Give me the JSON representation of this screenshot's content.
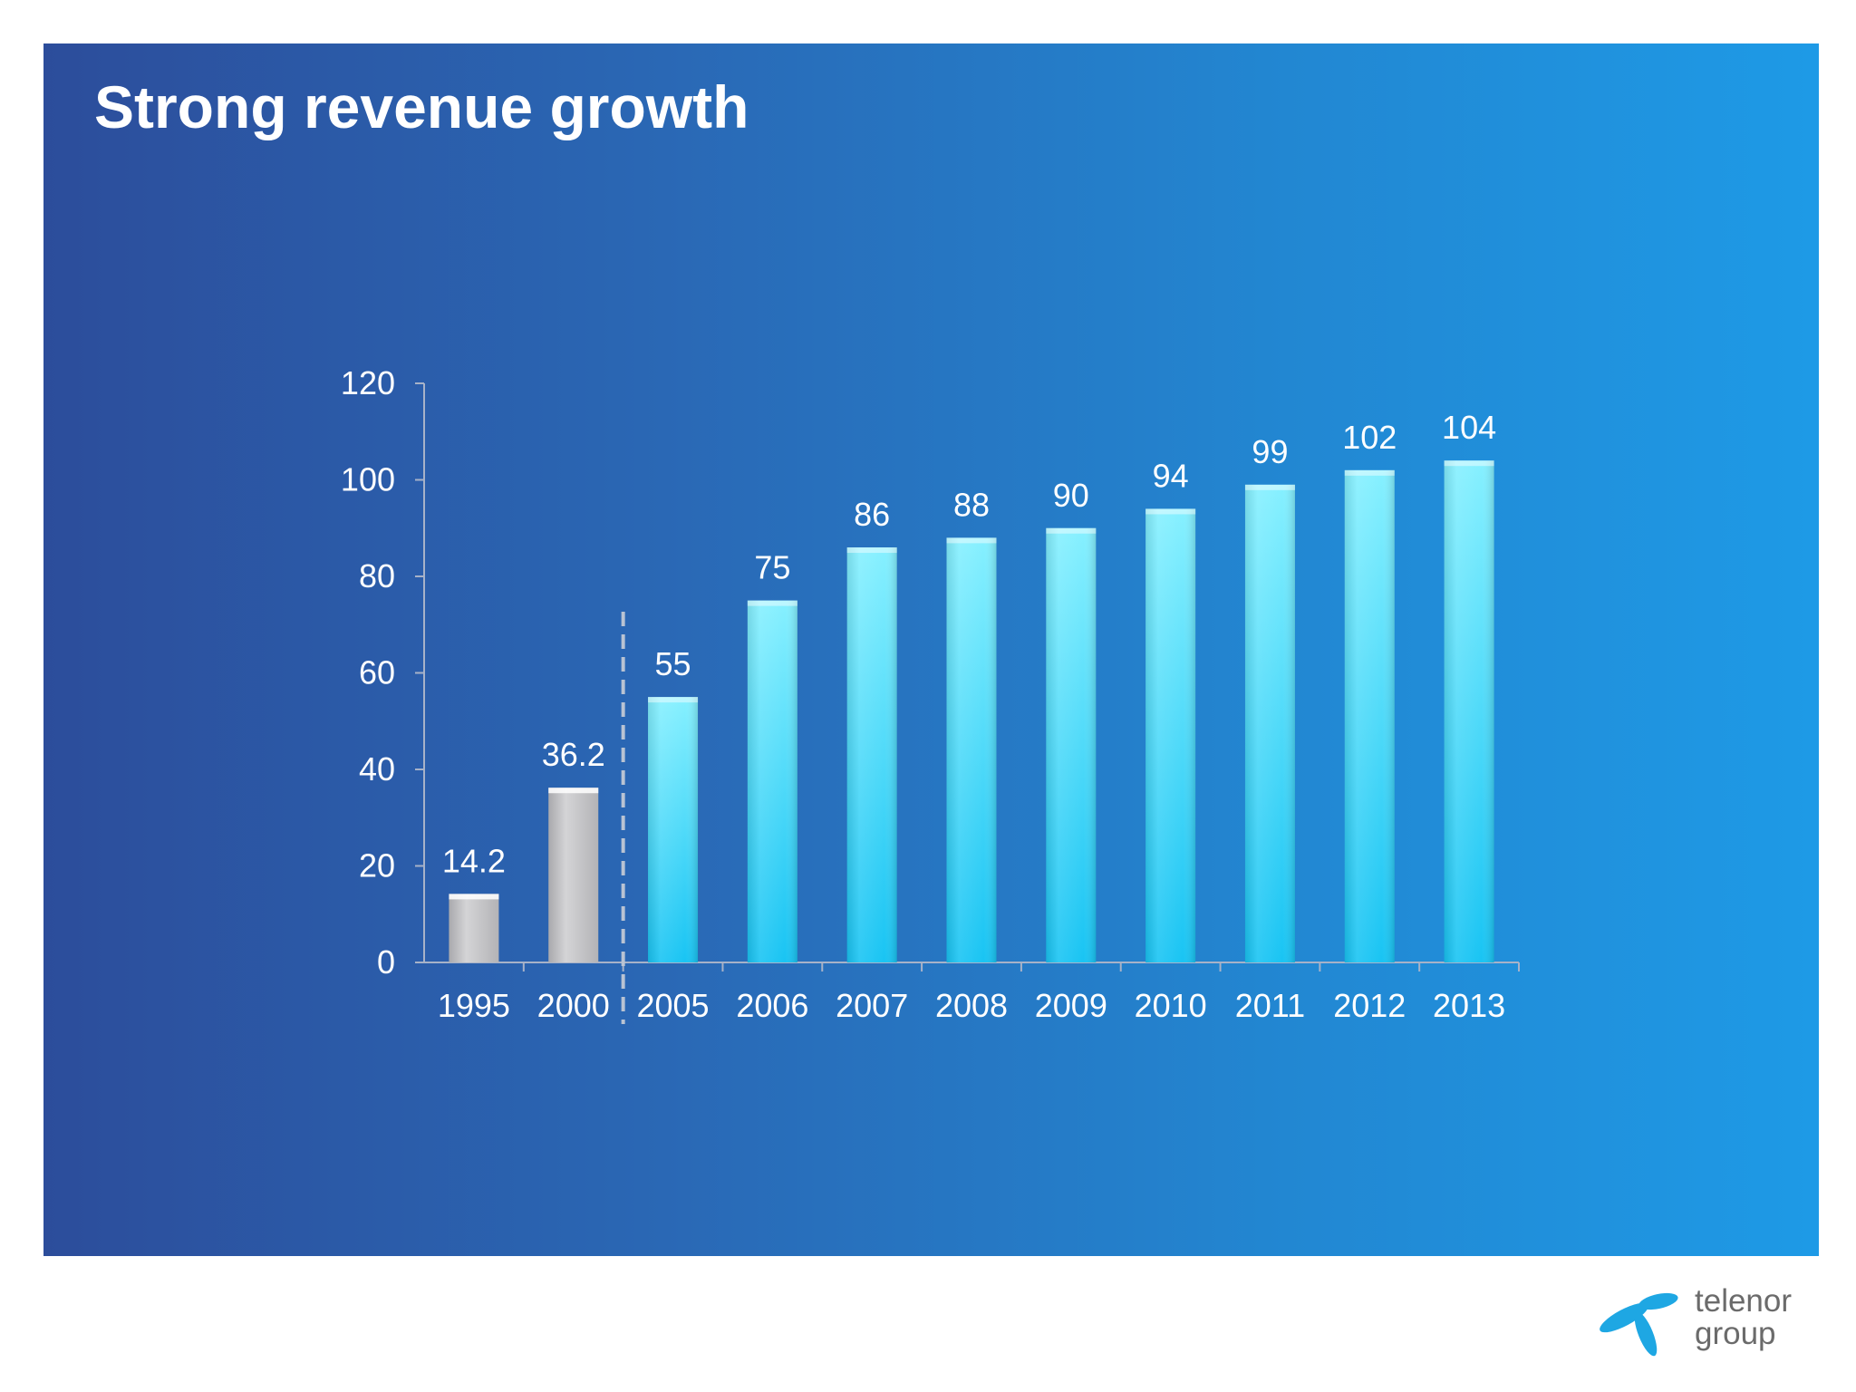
{
  "slide": {
    "title": "Strong revenue growth"
  },
  "logo": {
    "line1": "telenor",
    "line2": "group",
    "icon": "telenor-propeller-icon",
    "color": "#1ea7e3"
  },
  "colors": {
    "background_left": "#2c4d9b",
    "background_right": "#1e9ae6",
    "historic_bar": "#c9c9cb",
    "current_bar_top": "#86f0ff",
    "current_bar_bottom": "#19c4f3",
    "axis_text": "#ffffff",
    "divider": "#b9c3d3"
  },
  "chart_data": {
    "type": "bar",
    "title": "",
    "xlabel": "",
    "ylabel": "",
    "ylim": [
      0,
      120
    ],
    "yticks": [
      0,
      20,
      40,
      60,
      80,
      100,
      120
    ],
    "categories": [
      "1995",
      "2000",
      "2005",
      "2006",
      "2007",
      "2008",
      "2009",
      "2010",
      "2011",
      "2012",
      "2013"
    ],
    "values": [
      14.2,
      36.2,
      55,
      75,
      86,
      88,
      90,
      94,
      99,
      102,
      104
    ],
    "value_labels": [
      "14.2",
      "36.2",
      "55",
      "75",
      "86",
      "88",
      "90",
      "94",
      "99",
      "102",
      "104"
    ],
    "historic_categories": [
      "1995",
      "2000"
    ],
    "divider_after": "2000",
    "grid": false,
    "legend": "none"
  }
}
